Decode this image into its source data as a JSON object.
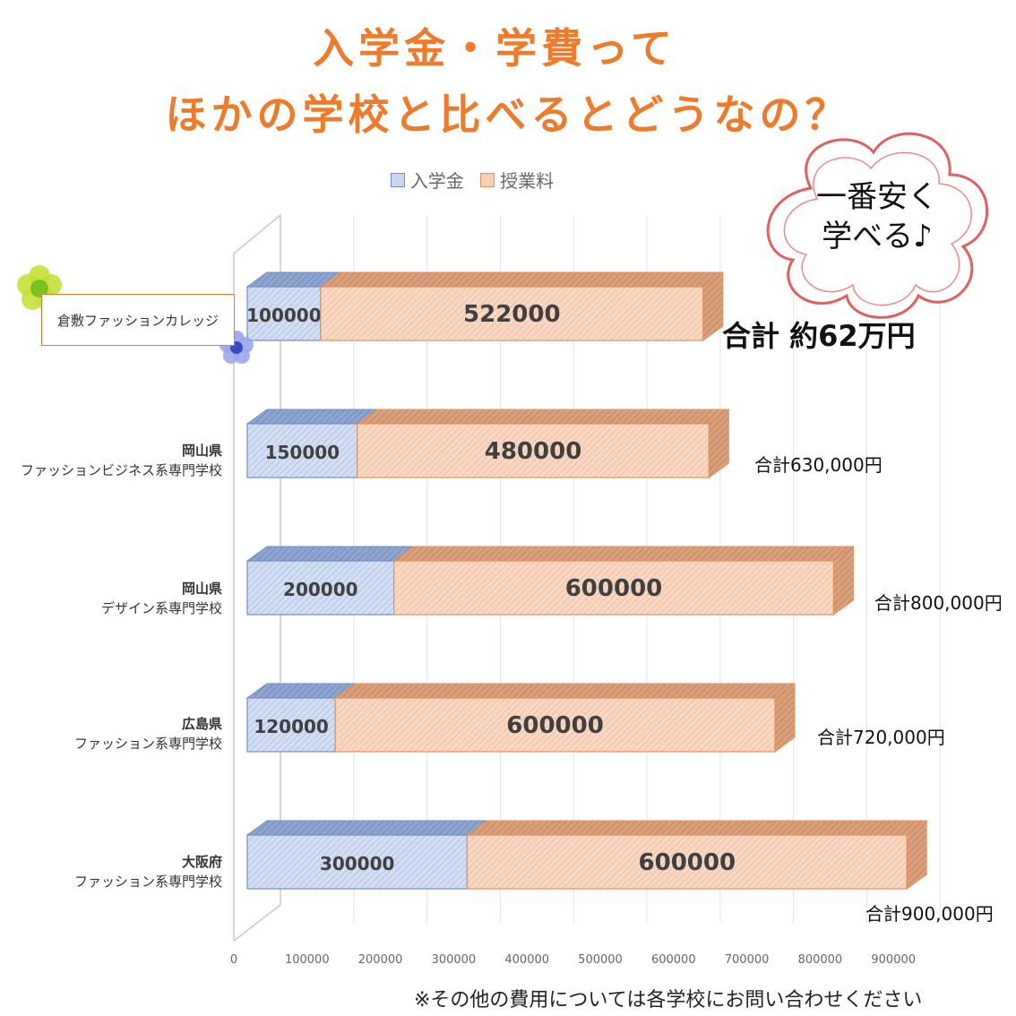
{
  "title_line1": "入学金・学費って",
  "title_line2": "ほかの学校と比べるとどうなの？",
  "callout_line1": "一番安く",
  "callout_line2": "学べる♪",
  "highlight_total": "合計 約62万円",
  "footnote": "※その他の費用については各学校にお問い合わせください",
  "colors": {
    "title": "#ee7a2a",
    "admission_fill": "#c9d6ee",
    "admission_stroke": "#6f8fc8",
    "tuition_fill": "#f6cfb5",
    "tuition_stroke": "#e3905f",
    "callout_border": "#e06060",
    "highlight_border": "#e8792a"
  },
  "decorations": [
    "green-flower-icon",
    "blue-flower-icon",
    "cloud-callout"
  ],
  "chart_data": {
    "type": "bar",
    "orientation": "horizontal",
    "stacked": true,
    "style": "3d",
    "categories": [
      [
        "倉敷ファッションカレッジ"
      ],
      [
        "岡山県",
        "ファッションビジネス系専門学校"
      ],
      [
        "岡山県",
        "デザイン系専門学校"
      ],
      [
        "広島県",
        "ファッション系専門学校"
      ],
      [
        "大阪府",
        "ファッション系専門学校"
      ]
    ],
    "series": [
      {
        "name": "入学金",
        "values": [
          100000,
          150000,
          200000,
          120000,
          300000
        ]
      },
      {
        "name": "授業料",
        "values": [
          522000,
          480000,
          600000,
          600000,
          600000
        ]
      }
    ],
    "totals": [
      "",
      "合計630,000円",
      "合計800,000円",
      "合計720,000円",
      "合計900,000円"
    ],
    "xticks": [
      "0",
      "100000",
      "200000",
      "300000",
      "400000",
      "500000",
      "600000",
      "700000",
      "800000",
      "900000"
    ],
    "xlim": [
      0,
      900000
    ],
    "grid": true,
    "legend": "top"
  }
}
